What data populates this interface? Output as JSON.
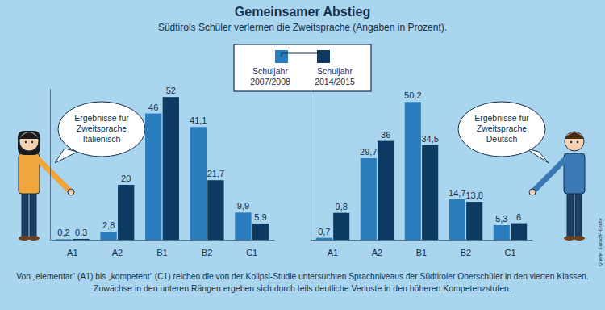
{
  "title": "Gemeinsamer Abstieg",
  "subtitle": "Südtirols Schüler verlernen die Zweitsprache (Angaben in Prozent).",
  "note": [
    "Von „elementar“ (A1) bis „kompetent“ (C1) reichen die von der Kolipsi-Studie untersuchten Sprachniveaus der Südtiroler Oberschüler in den vierten Klassen.",
    "Zuwächse in den unteren Rängen ergeben sich durch teils deutliche Verluste in den höheren Kompetenzstufen."
  ],
  "source": "Quelle: Eurac/F-Grafik",
  "chart_data": [
    {
      "type": "bar",
      "annotation": [
        "Ergebnisse für",
        "Zweitsprache",
        "Italienisch"
      ],
      "categories": [
        "A1",
        "A2",
        "B1",
        "B2",
        "C1"
      ],
      "series": [
        {
          "name": "Schuljahr 2007/2008",
          "color": "#2a7dbd",
          "values": [
            0.2,
            2.8,
            46,
            41.1,
            9.9
          ],
          "value_labels": [
            "0,2",
            "2,8",
            "46",
            "41,1",
            "9,9"
          ]
        },
        {
          "name": "Schuljahr 2014/2015",
          "color": "#0c3a62",
          "values": [
            0.3,
            20,
            52,
            21.7,
            5.9
          ],
          "value_labels": [
            "0,3",
            "20",
            "52",
            "21,7",
            "5,9"
          ]
        }
      ],
      "ylim": [
        0,
        55
      ],
      "data_labels": true,
      "tick_labels": "x",
      "legend": "top"
    },
    {
      "type": "bar",
      "annotation": [
        "Ergebnisse für",
        "Zweitsprache",
        "Deutsch"
      ],
      "categories": [
        "A1",
        "A2",
        "B1",
        "B2",
        "C1"
      ],
      "series": [
        {
          "color": "#2a7dbd",
          "values": [
            0.7,
            29.7,
            50.2,
            14.7,
            5.3
          ],
          "value_labels": [
            "0,7",
            "29,7",
            "50,2",
            "14,7",
            "5,3"
          ]
        },
        {
          "color": "#0c3a62",
          "values": [
            9.8,
            36,
            34.5,
            13.8,
            6
          ],
          "value_labels": [
            "9,8",
            "36",
            "34,5",
            "13,8",
            "6"
          ]
        }
      ],
      "ylim": [
        0,
        55
      ],
      "data_labels": true,
      "tick_labels": "x"
    }
  ]
}
